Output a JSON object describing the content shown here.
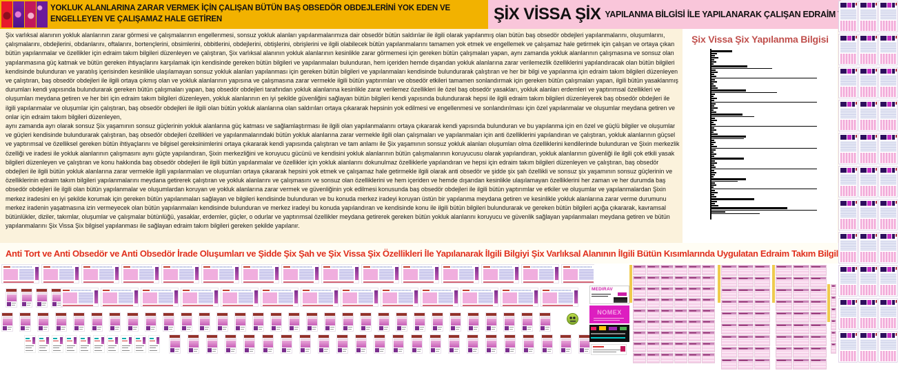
{
  "header": {
    "left_title": "YOKLUK ALANLARINA ZARAR VERMEK İÇİN ÇALIŞAN BÜTÜN BAŞ OBSEDÖR OBDEJLERİNİ YOK EDEN VE ENGELLEYEN VE ÇALIŞAMAZ HALE GETİREN",
    "right_title_main": "ŞİX VİSSA ŞİX",
    "right_title_rest": "YAPILANMA BİLGİSİ İLE YAPILANARAK ÇALIŞAN EDRAİM TAKIM BİLGİLERİ",
    "colors": {
      "left_bg": "#F2B200",
      "right_bg": "#F9C6DA"
    }
  },
  "body_text": {
    "paragraph1": "Şix varlıksal alanının yokluk alanlarının zarar görmesi ve çalışmalarının engellenmesi, sonsuz yokluk alanları yapılanmalarımıza dair obsedör bütün saldırılar ile ilgili olarak yapılanmış olan bütün baş obsedör obdejleri yapılanmalarını, oluşumlarını, çalışmalarını, obdejlerini, obdanlarını, oftalarını, bortençlerini, obsimlerini, obbitlerini, obdejlerini, obtişlerini, obrişlerini ve ilgili olabilecek bütün yapılanmalarını tamamen yok etmek ve engellemek ve çalışamaz hale getirmek için çalışan ve ortaya çıkan bütün yapılanmalar ve özellikler için edraim takım bilgileri düzenleyen ve çalıştıran, Şix varlıksal alanının yokluk alanlarının kesinlikle zarar görmemesi için gereken bütün çalışmaları yapan, aynı zamanda yokluk alanlarının çalışmasına ve sonsuz olan yapılanmasına güç katmak ve bütün gereken ihtiyaçlarını karşılamak için kendisinde gereken bütün bilgileri ve yapılanmaları bulunduran, hem içeriden hemde dışarıdan yokluk alanlarına zarar verilemezlik özelliklerini yapılandıracak olan bütün bilgileri kendisinde bulunduran ve yaratılış içerisinden kesinlikle ulaşılamayan sonsuz yokluk alanları yapılanması için gereken bütün bilgileri ve yapılanmaları kendisinde bulundurarak çalıştıran ve her bir bilgi ve yapılanma için edraim takım bilgileri düzenleyen ve çalıştıran, baş obsedör obdejleri ile ilgili ortaya çıkmış olan ve yokluk alanlarının yapısına ve çalışmasına zarar vermekle ilgili bütün yaptırımları ve obsedör etkileri tamamen sonlandırmak için gereken bütün çalışmaları yapan, ilgili bütün yasaklanmış durumları kendi yapısında bulundurarak gereken bütün çalışmaları yapan, baş obsedör obdejleri tarafından yokluk alanlarına kesinlikle zarar verilemez özellikleri ile özel baş obsedör yasakları, yokluk alanları erdemleri ve yaptırımsal özellikleri ve oluşumları meydana getiren ve her biri için edraim takım bilgileri düzenleyen, yokluk alanlarının en iyi şekilde güvenliğini sağlayan bütün bilgileri kendi yapısında bulundurarak hepsi ile ilgili edraim takım bilgileri düzenleyerek baş obsedör obdejleri ile ilgili yapılanmalar ve oluşumlar için çalıştıran, baş obsedör obdejleri ile ilgili olan bütün yokluk alanlarına olan saldırıları ortaya çıkararak hepsinin yok edilmesi ve engellenmesi ve sonlandırılması için özel yapılanmalar ve oluşumlar meydana getiren ve onlar için edraim takım bilgileri düzenleyen,",
    "paragraph2": " aynı zamanda ayrı olarak sonsuz Şix yaşamının sonsuz güçlerinin yokluk alanlarına güç katması ve sağlamlaştırması ile ilgili olan yapılanmalarını ortaya çıkararak kendi yapısında bulunduran ve bu yapılanma için en özel ve güçlü bilgiler ve oluşumlar ve güçleri kendisinde bulundurarak çalıştıran, baş obsedör obdejleri özellikleri ve yapılanmalarındaki bütün yokluk alanlarına zarar vermekle ilgili olan çalışmaları ve yapılanmaları için anti özelliklerini yapılandıran ve çalıştıran, yokluk alanlarının güçsel ve yaptırımsal ve özelliksel gereken bütün ihtiyaçlarını ve bilgisel gereksinimlerini ortaya çıkararak kendi yapısında çalıştıran ve tam anlamı ile Şix yaşamının sonsuz yokluk alanları oluşumları olma özelliklerini kendilerinde bulunduran ve Şixin merkezlik özelliği ve iradesi ile yokluk alanlarının çalışmasını aynı güçte yapılandıran, Şixin merkezliğini ve koruyucu gücünü ve kendisini yokluk alanlarının bütün çalışmalarının koruyucusu olarak yapılandıran, yokluk alanlarının  güvenliği ile ilgili çok etkili yasak bilgileri düzenleyen ve çalıştıran ve konu hakkında baş obsedör obdejleri ile ilgili bütün yapılanmalar ve özellikler için yokluk alanlarını dokunulmaz özelliklerle yapılandıran ve hepsi için edraim takım bilgileri düzenleyen ve çalıştıran, baş obsedör obdejleri ile ilgili bütün yokluk alanlarına zarar vermekle ilgili yapılanmaları ve oluşumları ortaya  çıkararak hepsini yok etmek ve çalışamaz hale getirmekle ilgili olarak anti obsedör ve şidde şix şah özellikli ve sonsuz şix yaşamının sonsuz güçlerinin ve özelliklerinin edraim takım bilgileri yapılanmalarını meydana getirerek çalıştıran ve yokluk alanlarını ve çalışmasını ve sonsuz olan özelliklerini ve hem içeriden ve hemde dışarıdan kesinlikle ulaşılamayan özelliklerini her zaman ve her durumda baş obsedör obdejleri ile ilgili olan bütün yapılanmalar ve oluşumlardan koruyan ve yokluk alanlarına zarar vermek ve güvenliğinin yok edilmesi konusunda baş obsedör obdejleri ile ilgili bütün yaptırımlar ve etkiler ve oluşumlar ve yapılanmalardan Şixin merkez iradesini en iyi şekilde korumak için gereken bütün yapılanmaları sağlayan ve bilgileri kendisinde bulunduran ve bu konuda merkez iradeyi koruyan üstün bir yapılanma meydana getiren ve kesinlikle yokluk alanlarına zarar verme durumunu merkez iradenin yaşatmasına izin vermeyecek olan bütün yapılanmaları kendisinde bulunduran ve merkez iradeyi bu konuda yapılandıran ve kendisinde konu ile ilgili bütün bilgileri bulundurarak ve gereken bütün bilgileri açığa çıkararak, kavramsal bütünlükler, diziler, takımlar, oluşumlar ve çalışmalar bütünlüğü, yasaklar, erdemler, güçler, o odurlar ve yaptırımsal özellikler meydana getirerek gereken bütün yokluk alanlarını koruyucu ve güvenlik sağlayan yapılanmaları meydana getiren ve bütün yapılanmalarını Şix Vissa Şix bilgisel yapılanması ile sağlayan edraim takım bilgileri gereken şekilde yapılanır."
  },
  "chart_data": {
    "type": "bar",
    "orientation": "horizontal",
    "title": "Şix Vissa Şix Yapılanma Bilgisi",
    "title_color": "#C0504D",
    "bar_color": "#000000",
    "xlim": [
      0,
      155
    ],
    "legend": "none",
    "grid": false,
    "bars_format": "[length_px, weight(1=thin,2=normal,3=thick)]",
    "bars": [
      [
        30,
        3
      ],
      [
        8,
        2
      ],
      [
        5,
        2
      ],
      [
        10,
        2
      ],
      [
        4,
        2
      ],
      [
        7,
        2
      ],
      [
        3,
        2
      ],
      [
        52,
        3
      ],
      [
        88,
        1
      ],
      [
        6,
        2
      ],
      [
        9,
        2
      ],
      [
        4,
        2
      ],
      [
        7,
        2
      ],
      [
        153,
        1
      ],
      [
        5,
        2
      ],
      [
        8,
        2
      ],
      [
        3,
        2
      ],
      [
        6,
        2
      ],
      [
        9,
        2
      ],
      [
        50,
        3
      ],
      [
        95,
        1
      ],
      [
        5,
        2
      ],
      [
        3,
        2
      ],
      [
        8,
        2
      ],
      [
        4,
        2
      ],
      [
        153,
        1
      ],
      [
        6,
        2
      ],
      [
        4,
        2
      ],
      [
        9,
        2
      ],
      [
        3,
        2
      ],
      [
        7,
        2
      ],
      [
        45,
        3
      ],
      [
        62,
        1
      ],
      [
        5,
        2
      ],
      [
        8,
        2
      ],
      [
        3,
        2
      ],
      [
        6,
        2
      ],
      [
        153,
        1
      ],
      [
        4,
        2
      ],
      [
        7,
        2
      ],
      [
        3,
        2
      ],
      [
        9,
        2
      ],
      [
        50,
        3
      ],
      [
        47,
        1
      ],
      [
        4,
        2
      ],
      [
        6,
        2
      ],
      [
        3,
        2
      ],
      [
        8,
        2
      ],
      [
        153,
        1
      ],
      [
        6,
        2
      ],
      [
        3,
        2
      ],
      [
        7,
        2
      ],
      [
        4,
        2
      ],
      [
        47,
        3
      ],
      [
        5,
        2
      ],
      [
        8,
        2
      ],
      [
        4,
        2
      ],
      [
        6,
        2
      ],
      [
        153,
        1
      ],
      [
        4,
        2
      ],
      [
        7,
        2
      ],
      [
        5,
        2
      ],
      [
        3,
        2
      ],
      [
        50,
        3
      ],
      [
        38,
        1
      ],
      [
        5,
        2
      ],
      [
        7,
        2
      ],
      [
        3,
        2
      ],
      [
        153,
        1
      ],
      [
        5,
        2
      ],
      [
        9,
        2
      ],
      [
        4,
        2
      ],
      [
        7,
        2
      ],
      [
        62,
        3
      ],
      [
        8,
        2
      ],
      [
        5,
        2
      ],
      [
        10,
        2
      ],
      [
        110,
        3
      ],
      [
        153,
        1
      ],
      [
        20,
        2
      ],
      [
        70,
        1
      ]
    ]
  },
  "banner": {
    "text": "Anti Tort ve Anti Obsedör ve Anti Obsedör İrade Oluşumları ve Şidde Şix Şah ve Şix Vissa Şix Özellikleri İle Yapılanarak İlgili Bilgiyi Şix Varlıksal Alanının İlgili Bütün Kısımlarında Uygulatan Edraim Takım Bilgileri Yapılanması",
    "color": "#E0301E"
  },
  "collage": {
    "ads": {
      "medirav_label": "MEDIRAV",
      "nomex_label": "NOMEX"
    },
    "counts": {
      "row1_wide_pages": 15,
      "row2_covers": 4,
      "row2_wide_pages": 13,
      "row3_covers": 31,
      "row4_minis": 10,
      "row4_covers": 23,
      "grid_block1": 54,
      "grid_block2": 27,
      "grid_block3": 27,
      "grid_strip": 6,
      "far_right_pages": 33
    }
  }
}
